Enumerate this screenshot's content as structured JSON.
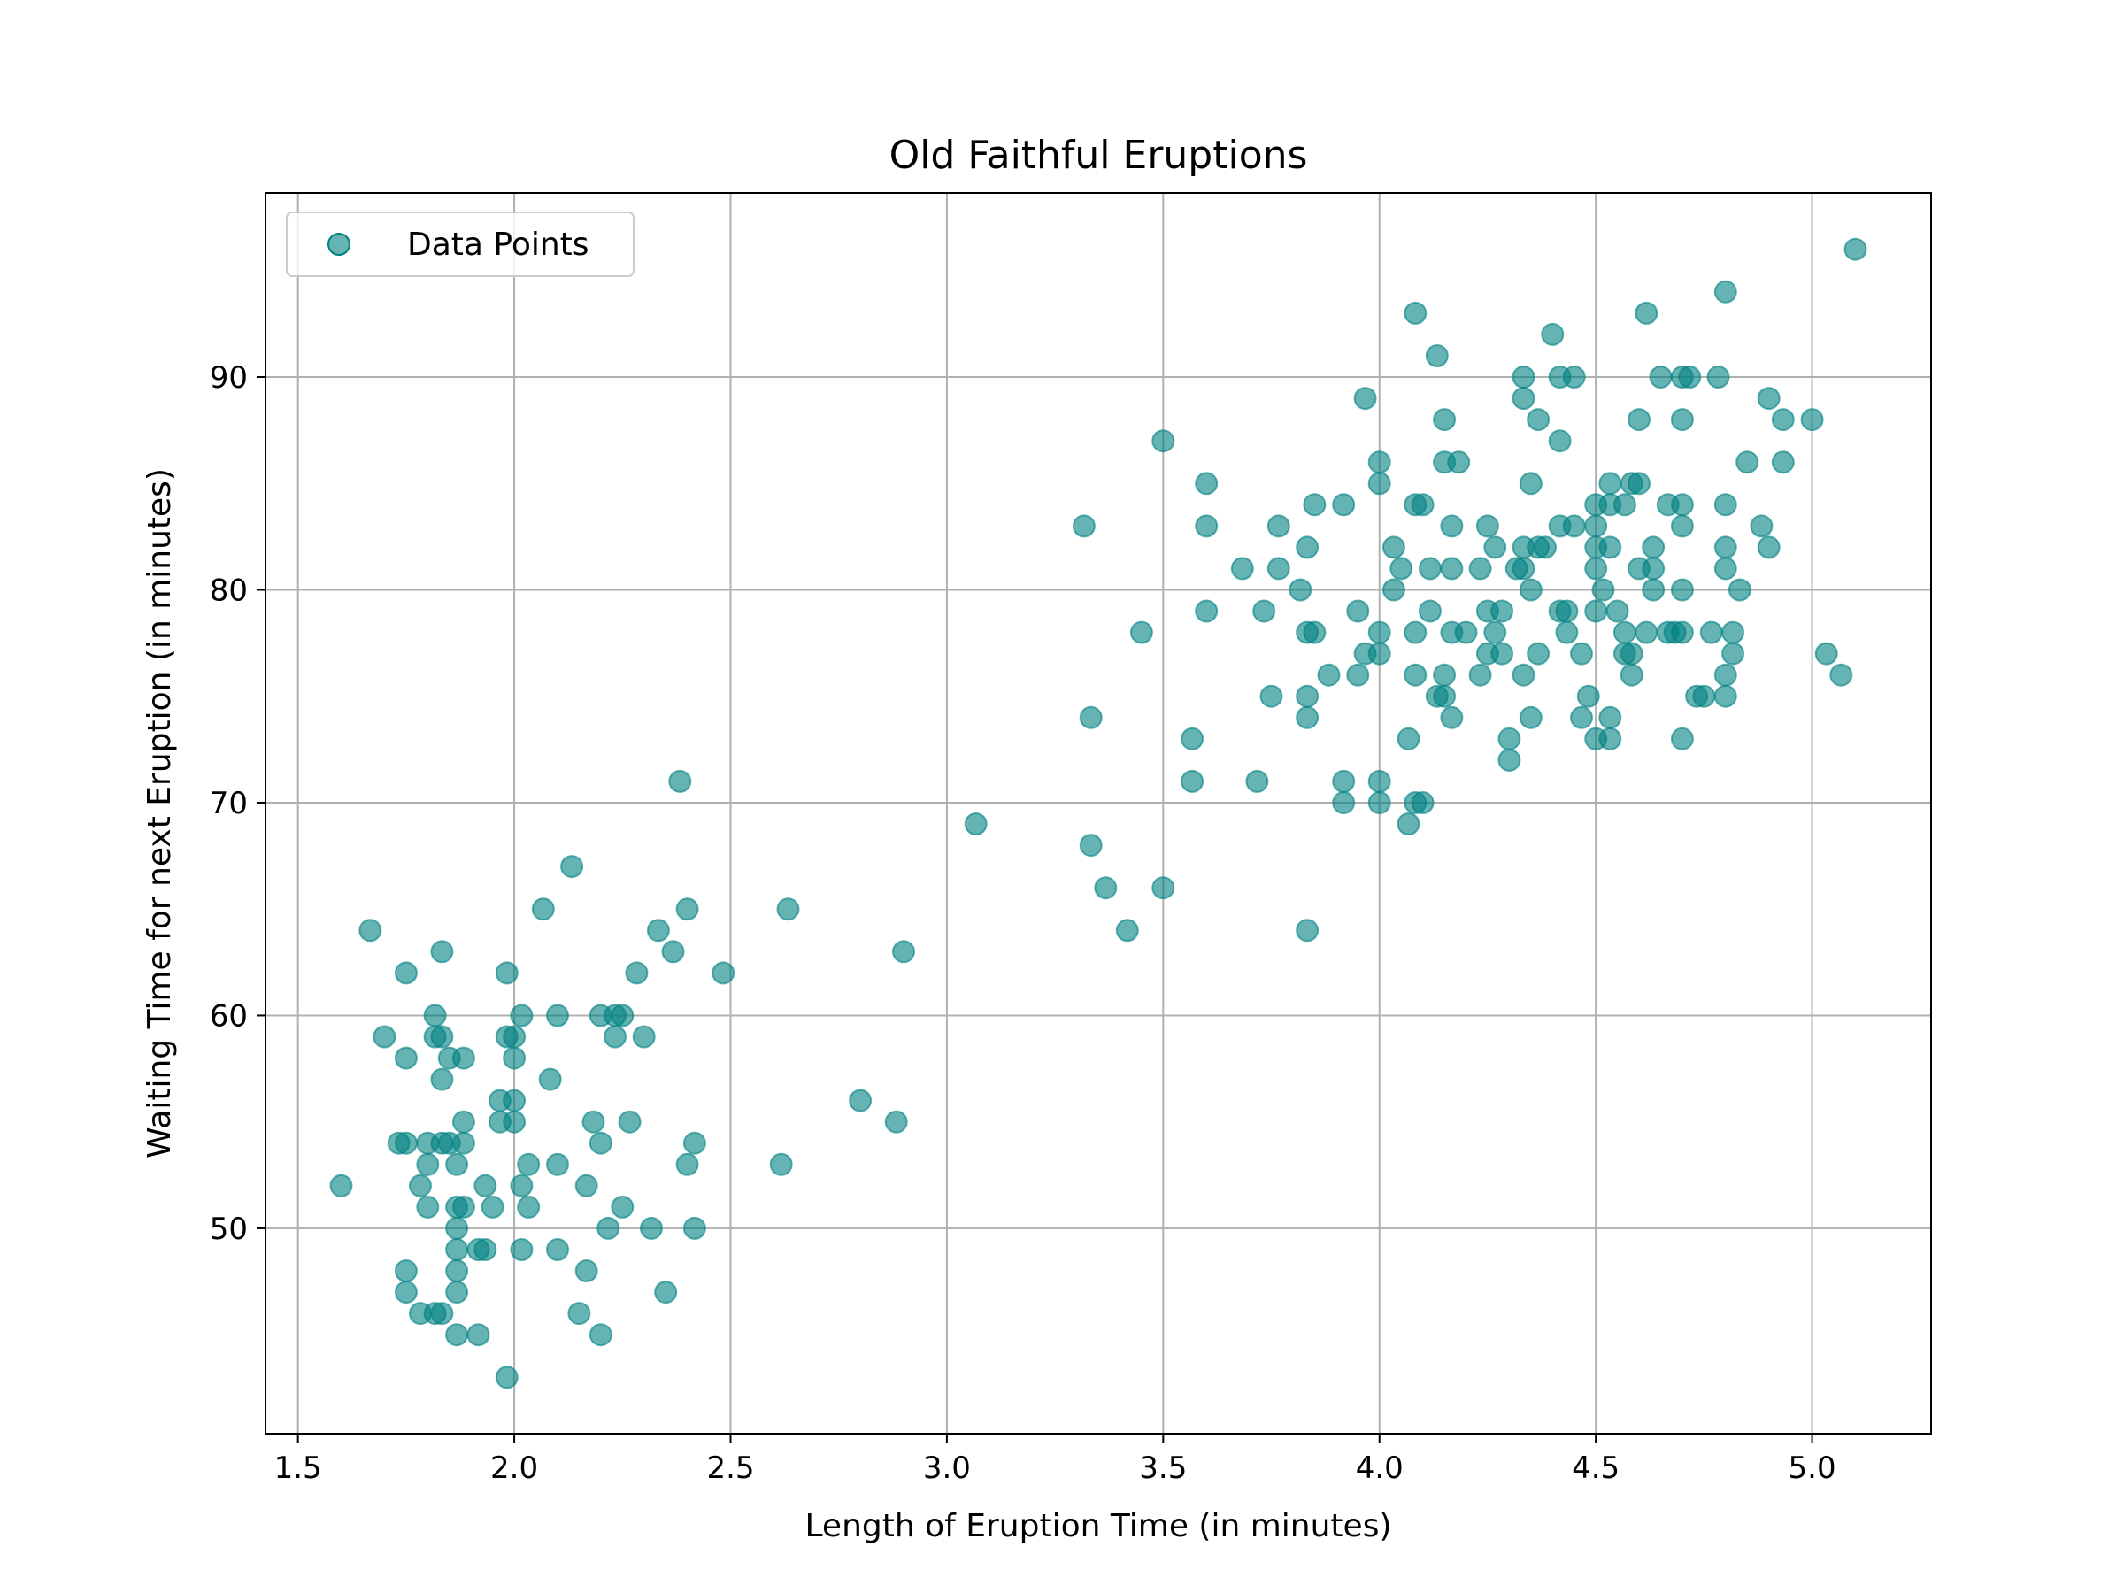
{
  "chart_data": {
    "type": "scatter",
    "title": "Old Faithful Eruptions",
    "xlabel": "Length of Eruption Time (in minutes)",
    "ylabel": "Waiting Time for next Eruption (in minutes)",
    "xlim": [
      1.425,
      5.275
    ],
    "ylim": [
      40.35,
      98.65
    ],
    "xticks": [
      1.5,
      2.0,
      2.5,
      3.0,
      3.5,
      4.0,
      4.5,
      5.0
    ],
    "xtick_labels": [
      "1.5",
      "2.0",
      "2.5",
      "3.0",
      "3.5",
      "4.0",
      "4.5",
      "5.0"
    ],
    "yticks": [
      50,
      60,
      70,
      80,
      90
    ],
    "ytick_labels": [
      "50",
      "60",
      "70",
      "80",
      "90"
    ],
    "grid": true,
    "legend_position": "top-left",
    "colors": {
      "marker": "#008080",
      "grid": "#b0b0b0"
    },
    "series": [
      {
        "name": "Data Points",
        "points": [
          [
            1.6,
            52
          ],
          [
            1.667,
            64
          ],
          [
            1.7,
            59
          ],
          [
            1.733,
            54
          ],
          [
            1.75,
            62
          ],
          [
            1.75,
            58
          ],
          [
            1.75,
            54
          ],
          [
            1.75,
            48
          ],
          [
            1.75,
            47
          ],
          [
            1.783,
            52
          ],
          [
            1.783,
            46
          ],
          [
            1.8,
            54
          ],
          [
            1.8,
            53
          ],
          [
            1.8,
            51
          ],
          [
            1.817,
            60
          ],
          [
            1.817,
            59
          ],
          [
            1.817,
            46
          ],
          [
            1.833,
            63
          ],
          [
            1.833,
            59
          ],
          [
            1.833,
            57
          ],
          [
            1.833,
            54
          ],
          [
            1.833,
            46
          ],
          [
            1.85,
            58
          ],
          [
            1.85,
            54
          ],
          [
            1.867,
            53
          ],
          [
            1.867,
            51
          ],
          [
            1.867,
            50
          ],
          [
            1.867,
            49
          ],
          [
            1.867,
            48
          ],
          [
            1.867,
            47
          ],
          [
            1.867,
            45
          ],
          [
            1.883,
            58
          ],
          [
            1.883,
            55
          ],
          [
            1.883,
            54
          ],
          [
            1.883,
            51
          ],
          [
            1.917,
            45
          ],
          [
            1.917,
            49
          ],
          [
            1.933,
            52
          ],
          [
            1.933,
            49
          ],
          [
            1.95,
            51
          ],
          [
            1.967,
            56
          ],
          [
            1.967,
            55
          ],
          [
            1.983,
            62
          ],
          [
            1.983,
            59
          ],
          [
            1.983,
            43
          ],
          [
            2.0,
            59
          ],
          [
            2.0,
            58
          ],
          [
            2.0,
            56
          ],
          [
            2.0,
            55
          ],
          [
            2.017,
            60
          ],
          [
            2.017,
            52
          ],
          [
            2.017,
            49
          ],
          [
            2.033,
            53
          ],
          [
            2.033,
            51
          ],
          [
            2.067,
            65
          ],
          [
            2.083,
            57
          ],
          [
            2.1,
            60
          ],
          [
            2.1,
            53
          ],
          [
            2.1,
            49
          ],
          [
            2.133,
            67
          ],
          [
            2.15,
            46
          ],
          [
            2.167,
            52
          ],
          [
            2.167,
            48
          ],
          [
            2.183,
            55
          ],
          [
            2.2,
            60
          ],
          [
            2.2,
            54
          ],
          [
            2.2,
            45
          ],
          [
            2.217,
            50
          ],
          [
            2.233,
            60
          ],
          [
            2.233,
            59
          ],
          [
            2.25,
            60
          ],
          [
            2.25,
            51
          ],
          [
            2.267,
            55
          ],
          [
            2.283,
            62
          ],
          [
            2.3,
            59
          ],
          [
            2.317,
            50
          ],
          [
            2.333,
            64
          ],
          [
            2.35,
            47
          ],
          [
            2.367,
            63
          ],
          [
            2.383,
            71
          ],
          [
            2.4,
            65
          ],
          [
            2.4,
            53
          ],
          [
            2.417,
            54
          ],
          [
            2.417,
            50
          ],
          [
            2.483,
            62
          ],
          [
            2.617,
            53
          ],
          [
            2.633,
            65
          ],
          [
            2.8,
            56
          ],
          [
            2.883,
            55
          ],
          [
            2.9,
            63
          ],
          [
            3.067,
            69
          ],
          [
            3.317,
            83
          ],
          [
            3.333,
            74
          ],
          [
            3.333,
            68
          ],
          [
            3.367,
            66
          ],
          [
            3.417,
            64
          ],
          [
            3.45,
            78
          ],
          [
            3.5,
            87
          ],
          [
            3.5,
            66
          ],
          [
            3.567,
            73
          ],
          [
            3.567,
            71
          ],
          [
            3.6,
            85
          ],
          [
            3.6,
            83
          ],
          [
            3.6,
            79
          ],
          [
            3.683,
            81
          ],
          [
            3.717,
            71
          ],
          [
            3.733,
            79
          ],
          [
            3.75,
            75
          ],
          [
            3.767,
            83
          ],
          [
            3.767,
            81
          ],
          [
            3.817,
            80
          ],
          [
            3.833,
            82
          ],
          [
            3.833,
            78
          ],
          [
            3.833,
            75
          ],
          [
            3.833,
            74
          ],
          [
            3.833,
            64
          ],
          [
            3.85,
            84
          ],
          [
            3.85,
            78
          ],
          [
            3.883,
            76
          ],
          [
            3.917,
            84
          ],
          [
            3.917,
            71
          ],
          [
            3.917,
            70
          ],
          [
            3.95,
            79
          ],
          [
            3.95,
            76
          ],
          [
            3.967,
            89
          ],
          [
            3.967,
            77
          ],
          [
            4.0,
            86
          ],
          [
            4.0,
            85
          ],
          [
            4.0,
            78
          ],
          [
            4.0,
            77
          ],
          [
            4.0,
            71
          ],
          [
            4.0,
            70
          ],
          [
            4.033,
            82
          ],
          [
            4.033,
            80
          ],
          [
            4.05,
            81
          ],
          [
            4.067,
            73
          ],
          [
            4.067,
            69
          ],
          [
            4.083,
            93
          ],
          [
            4.083,
            84
          ],
          [
            4.083,
            78
          ],
          [
            4.083,
            76
          ],
          [
            4.083,
            70
          ],
          [
            4.1,
            84
          ],
          [
            4.1,
            70
          ],
          [
            4.117,
            81
          ],
          [
            4.117,
            79
          ],
          [
            4.133,
            91
          ],
          [
            4.133,
            75
          ],
          [
            4.15,
            88
          ],
          [
            4.15,
            86
          ],
          [
            4.15,
            76
          ],
          [
            4.15,
            75
          ],
          [
            4.167,
            83
          ],
          [
            4.167,
            81
          ],
          [
            4.167,
            78
          ],
          [
            4.167,
            74
          ],
          [
            4.183,
            86
          ],
          [
            4.2,
            78
          ],
          [
            4.233,
            81
          ],
          [
            4.233,
            76
          ],
          [
            4.25,
            83
          ],
          [
            4.25,
            79
          ],
          [
            4.25,
            77
          ],
          [
            4.267,
            82
          ],
          [
            4.267,
            78
          ],
          [
            4.283,
            79
          ],
          [
            4.283,
            77
          ],
          [
            4.3,
            73
          ],
          [
            4.3,
            72
          ],
          [
            4.317,
            81
          ],
          [
            4.333,
            90
          ],
          [
            4.333,
            89
          ],
          [
            4.333,
            82
          ],
          [
            4.333,
            81
          ],
          [
            4.333,
            76
          ],
          [
            4.35,
            85
          ],
          [
            4.35,
            80
          ],
          [
            4.35,
            74
          ],
          [
            4.367,
            88
          ],
          [
            4.367,
            82
          ],
          [
            4.367,
            77
          ],
          [
            4.383,
            82
          ],
          [
            4.4,
            92
          ],
          [
            4.417,
            90
          ],
          [
            4.417,
            87
          ],
          [
            4.417,
            83
          ],
          [
            4.417,
            79
          ],
          [
            4.433,
            79
          ],
          [
            4.433,
            78
          ],
          [
            4.45,
            90
          ],
          [
            4.45,
            83
          ],
          [
            4.467,
            77
          ],
          [
            4.467,
            74
          ],
          [
            4.483,
            75
          ],
          [
            4.5,
            84
          ],
          [
            4.5,
            83
          ],
          [
            4.5,
            82
          ],
          [
            4.5,
            81
          ],
          [
            4.5,
            79
          ],
          [
            4.5,
            73
          ],
          [
            4.517,
            80
          ],
          [
            4.533,
            85
          ],
          [
            4.533,
            84
          ],
          [
            4.533,
            82
          ],
          [
            4.533,
            74
          ],
          [
            4.533,
            73
          ],
          [
            4.55,
            79
          ],
          [
            4.567,
            84
          ],
          [
            4.567,
            78
          ],
          [
            4.567,
            77
          ],
          [
            4.583,
            85
          ],
          [
            4.583,
            77
          ],
          [
            4.583,
            76
          ],
          [
            4.6,
            88
          ],
          [
            4.6,
            85
          ],
          [
            4.6,
            81
          ],
          [
            4.617,
            93
          ],
          [
            4.617,
            78
          ],
          [
            4.633,
            82
          ],
          [
            4.633,
            81
          ],
          [
            4.633,
            80
          ],
          [
            4.65,
            90
          ],
          [
            4.667,
            84
          ],
          [
            4.667,
            78
          ],
          [
            4.683,
            78
          ],
          [
            4.7,
            90
          ],
          [
            4.7,
            88
          ],
          [
            4.7,
            84
          ],
          [
            4.7,
            83
          ],
          [
            4.7,
            80
          ],
          [
            4.7,
            78
          ],
          [
            4.7,
            73
          ],
          [
            4.717,
            90
          ],
          [
            4.733,
            75
          ],
          [
            4.75,
            75
          ],
          [
            4.767,
            78
          ],
          [
            4.783,
            90
          ],
          [
            4.8,
            94
          ],
          [
            4.8,
            84
          ],
          [
            4.8,
            82
          ],
          [
            4.8,
            81
          ],
          [
            4.8,
            76
          ],
          [
            4.8,
            75
          ],
          [
            4.817,
            78
          ],
          [
            4.817,
            77
          ],
          [
            4.833,
            80
          ],
          [
            4.85,
            86
          ],
          [
            4.883,
            83
          ],
          [
            4.9,
            89
          ],
          [
            4.9,
            82
          ],
          [
            4.933,
            88
          ],
          [
            4.933,
            86
          ],
          [
            5.0,
            88
          ],
          [
            5.033,
            77
          ],
          [
            5.067,
            76
          ],
          [
            5.1,
            96
          ]
        ]
      }
    ]
  }
}
